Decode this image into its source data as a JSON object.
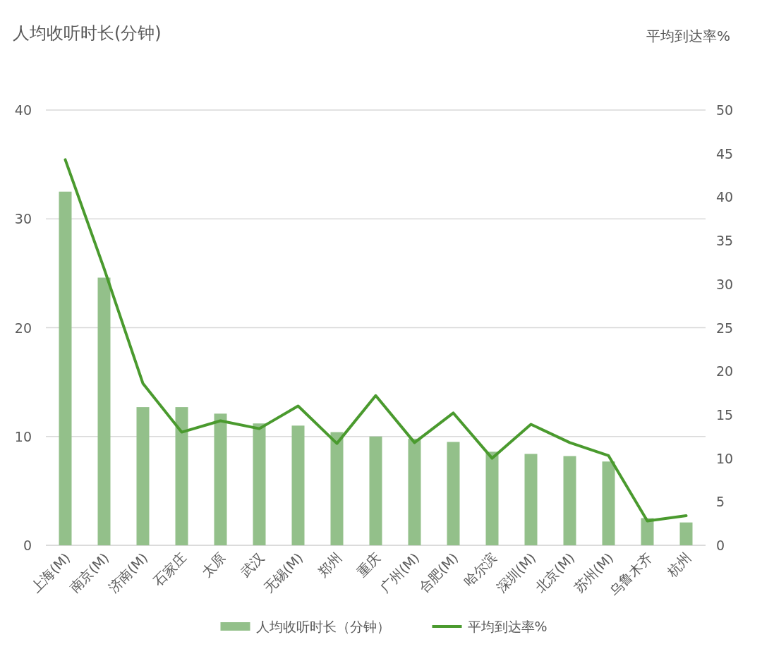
{
  "chart_data": {
    "type": "bar",
    "ylabel": "人均收听时长(分钟)",
    "y2label": "平均到达率%",
    "categories": [
      "上海(M)",
      "南京(M)",
      "济南(M)",
      "石家庄",
      "太原",
      "武汉",
      "无锡(M)",
      "郑州",
      "重庆",
      "广州(M)",
      "合肥(M)",
      "哈尔滨",
      "深圳(M)",
      "北京(M)",
      "苏州(M)",
      "乌鲁木齐",
      "杭州"
    ],
    "series": [
      {
        "name": "人均收听时长（分钟）",
        "color": "#93c08a",
        "values": [
          32.5,
          24.6,
          12.7,
          12.7,
          12.1,
          11.2,
          11.0,
          10.4,
          10.0,
          9.8,
          9.5,
          8.6,
          8.4,
          8.2,
          7.7,
          2.5,
          2.1
        ]
      },
      {
        "name": "平均到达率%",
        "type": "line",
        "axis": "y2",
        "color": "#4a9a2e",
        "values": [
          44.3,
          31.8,
          18.6,
          13.0,
          14.3,
          13.4,
          16.0,
          11.7,
          17.2,
          11.8,
          15.2,
          10.0,
          13.9,
          11.8,
          10.3,
          2.8,
          3.4
        ]
      }
    ],
    "ylim": [
      0,
      40
    ],
    "yticks": [
      0,
      10,
      20,
      30,
      40
    ],
    "y2lim": [
      0,
      50
    ],
    "y2ticks": [
      0,
      5,
      10,
      15,
      20,
      25,
      30,
      35,
      40,
      45,
      50
    ],
    "grid": "y",
    "legend": "bottom"
  }
}
